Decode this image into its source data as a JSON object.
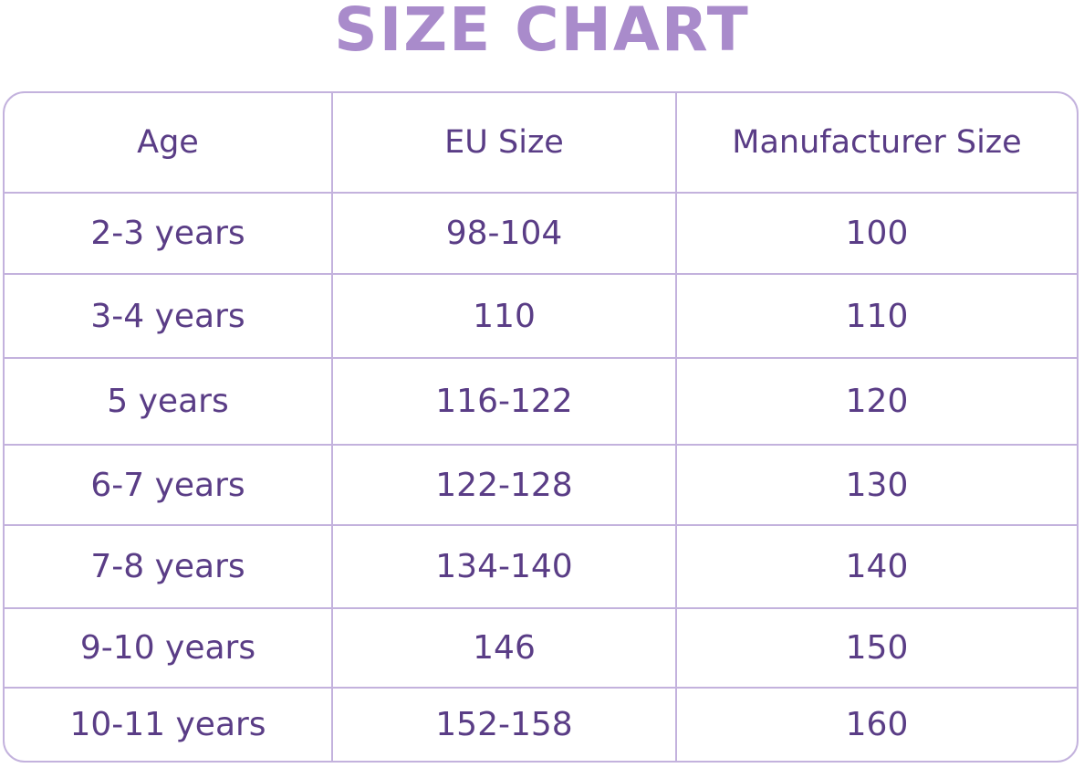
{
  "title": "SIZE CHART",
  "table": {
    "header": [
      "Age",
      "EU Size",
      "Manufacturer Size"
    ],
    "rows": [
      [
        "2-3 years",
        "98-104",
        "100"
      ],
      [
        "3-4 years",
        "110",
        "110"
      ],
      [
        "5 years",
        "116-122",
        "120"
      ],
      [
        "6-7 years",
        "122-128",
        "130"
      ],
      [
        "7-8 years",
        "134-140",
        "140"
      ],
      [
        "9-10 years",
        "146",
        "150"
      ],
      [
        "10-11 years",
        "152-158",
        "160"
      ]
    ]
  }
}
